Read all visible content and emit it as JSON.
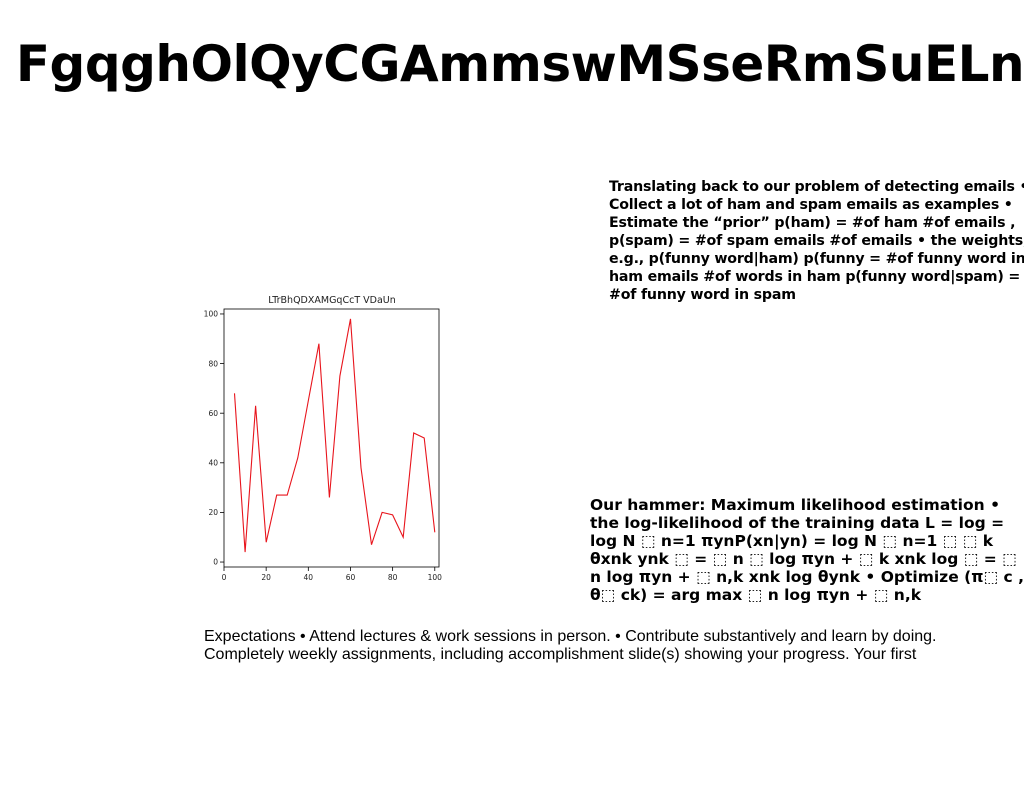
{
  "slide": {
    "title": "FgqghOlQyCGAmmswMSseRmSuELn",
    "text_block_1": "Translating back to our problem of detecting emails • Collect a lot of ham and spam emails as examples • Estimate the “prior” p(ham) = #of ham #of emails , p(spam) = #of spam emails #of emails • the weights, e.g., p(funny word|ham) p(funny = #of funny word in ham emails #of words in ham p(funny word|spam) = #of funny word in spam",
    "text_block_2": "Our hammer: Maximum likelihood estimation • the log-likelihood of the training data L = log = log N ⬚ n=1 πynP(xn|yn) = log N ⬚ n=1 ⬚ ⬚ k θxnk ynk ⬚ = ⬚ n ⬚ log πyn + ⬚ k xnk log ⬚ = ⬚ n log πyn + ⬚ n,k xnk log θynk • Optimize (π⬚ c , θ⬚ ck) = arg max ⬚ n log πyn + ⬚ n,k",
    "text_block_3": "Expectations • Attend lectures & work sessions in person. • Contribute substantively and learn by doing. Completely weekly assignments, including accomplishment slide(s) showing your progress. Your first"
  },
  "chart_data": {
    "type": "line",
    "title": "LTrBhQDXAMGqCcT VDaUn",
    "xlabel": "",
    "ylabel": "",
    "xlim": [
      0,
      102
    ],
    "ylim": [
      -2,
      102
    ],
    "xticks": [
      0,
      20,
      40,
      60,
      80,
      100
    ],
    "yticks": [
      0,
      20,
      40,
      60,
      80,
      100
    ],
    "grid": false,
    "color": "#e8141c",
    "series": [
      {
        "x": [
          5,
          10,
          15,
          20,
          25,
          30,
          35,
          40,
          45,
          50,
          55,
          60,
          65,
          70,
          75,
          80,
          85,
          90,
          95,
          100
        ],
        "values": [
          68,
          4,
          63,
          8,
          27,
          27,
          42,
          65,
          88,
          26,
          75,
          98,
          38,
          7,
          20,
          19,
          10,
          52,
          50,
          12
        ]
      }
    ]
  }
}
